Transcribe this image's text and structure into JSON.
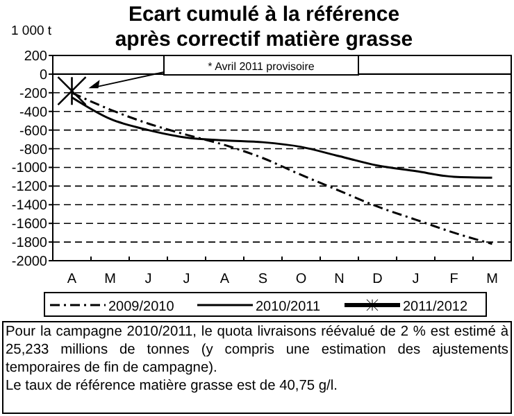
{
  "chart_data": {
    "type": "line",
    "title": "Ecart cumulé à la référence\naprès correctif matière grasse",
    "ylabel": "1 000 t",
    "categories": [
      "A",
      "M",
      "J",
      "J",
      "A",
      "S",
      "O",
      "N",
      "D",
      "J",
      "F",
      "M"
    ],
    "series": [
      {
        "name": "2009/2010",
        "color": "#000000",
        "line_style": "dashdot",
        "marker": "none",
        "values": [
          -200,
          -380,
          -530,
          -650,
          -760,
          -900,
          -1080,
          -1250,
          -1420,
          -1560,
          -1700,
          -1820
        ]
      },
      {
        "name": "2010/2011",
        "color": "#000000",
        "line_style": "solid",
        "marker": "none",
        "values": [
          -250,
          -480,
          -600,
          -680,
          -710,
          -730,
          -780,
          -880,
          -980,
          -1040,
          -1100,
          -1110
        ]
      },
      {
        "name": "2011/2012",
        "color": "#000000",
        "line_style": "solid",
        "marker": "cross",
        "values": [
          -180,
          null,
          null,
          null,
          null,
          null,
          null,
          null,
          null,
          null,
          null,
          null
        ]
      }
    ],
    "ylim": [
      -2000,
      200
    ],
    "yticks": [
      -2000,
      -1800,
      -1600,
      -1400,
      -1200,
      -1000,
      -800,
      -600,
      -400,
      -200,
      0,
      200
    ],
    "ref_lines": [
      {
        "axis": "y",
        "value": 0,
        "color": "#000000"
      }
    ],
    "grid": "y",
    "legend": "bottom",
    "annotations": [
      "* Avril 2011  provisoire",
      "Pour la campagne 2010/2011, le quota livraisons réévalué de 2 % est estimé à 25,233 millions de tonnes (y compris une estimation des ajustements temporaires de fin de campagne).",
      "Le taux de référence matière grasse est de 40,75 g/l."
    ]
  }
}
